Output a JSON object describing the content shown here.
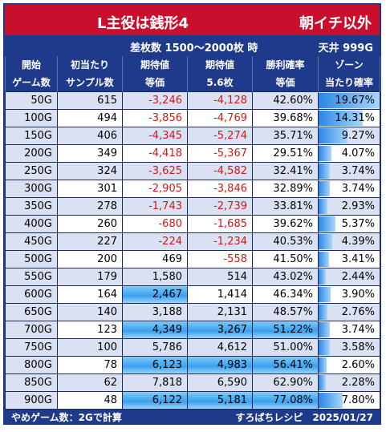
{
  "title": {
    "machine": "L主役は銭形4",
    "scope": "朝イチ以外"
  },
  "subheader": {
    "condition": "差枚数 1500～2000枚 時",
    "ceiling": "天井 999G"
  },
  "headers": [
    [
      "開始",
      "ゲーム数"
    ],
    [
      "初当たり",
      "サンプル数"
    ],
    [
      "期待値",
      "等価"
    ],
    [
      "期待値",
      "5.6枚"
    ],
    [
      "勝利確率",
      "等価"
    ],
    [
      "ゾーン",
      "当たり確率"
    ]
  ],
  "rows": [
    {
      "start": "50G",
      "samples": "615",
      "ev_equal": "-3,246",
      "ev_56": "-4,128",
      "win_rate": "42.60%",
      "zone_rate": "19.67%"
    },
    {
      "start": "100G",
      "samples": "494",
      "ev_equal": "-3,856",
      "ev_56": "-4,769",
      "win_rate": "39.68%",
      "zone_rate": "14.31%"
    },
    {
      "start": "150G",
      "samples": "406",
      "ev_equal": "-4,345",
      "ev_56": "-5,274",
      "win_rate": "35.71%",
      "zone_rate": "9.27%"
    },
    {
      "start": "200G",
      "samples": "349",
      "ev_equal": "-4,418",
      "ev_56": "-5,367",
      "win_rate": "29.51%",
      "zone_rate": "4.07%"
    },
    {
      "start": "250G",
      "samples": "324",
      "ev_equal": "-3,625",
      "ev_56": "-4,582",
      "win_rate": "32.41%",
      "zone_rate": "3.74%"
    },
    {
      "start": "300G",
      "samples": "301",
      "ev_equal": "-2,905",
      "ev_56": "-3,846",
      "win_rate": "32.89%",
      "zone_rate": "3.74%"
    },
    {
      "start": "350G",
      "samples": "278",
      "ev_equal": "-1,743",
      "ev_56": "-2,739",
      "win_rate": "33.81%",
      "zone_rate": "2.93%"
    },
    {
      "start": "400G",
      "samples": "260",
      "ev_equal": "-680",
      "ev_56": "-1,685",
      "win_rate": "39.62%",
      "zone_rate": "5.37%"
    },
    {
      "start": "450G",
      "samples": "227",
      "ev_equal": "-224",
      "ev_56": "-1,234",
      "win_rate": "40.53%",
      "zone_rate": "4.39%"
    },
    {
      "start": "500G",
      "samples": "200",
      "ev_equal": "469",
      "ev_56": "-558",
      "win_rate": "41.50%",
      "zone_rate": "3.41%"
    },
    {
      "start": "550G",
      "samples": "179",
      "ev_equal": "1,580",
      "ev_56": "514",
      "win_rate": "43.02%",
      "zone_rate": "2.44%"
    },
    {
      "start": "600G",
      "samples": "164",
      "ev_equal": "2,467",
      "ev_56": "1,414",
      "win_rate": "46.34%",
      "zone_rate": "3.90%"
    },
    {
      "start": "650G",
      "samples": "140",
      "ev_equal": "3,188",
      "ev_56": "2,131",
      "win_rate": "48.57%",
      "zone_rate": "2.76%"
    },
    {
      "start": "700G",
      "samples": "123",
      "ev_equal": "4,349",
      "ev_56": "3,267",
      "win_rate": "51.22%",
      "zone_rate": "3.74%"
    },
    {
      "start": "750G",
      "samples": "100",
      "ev_equal": "5,786",
      "ev_56": "4,612",
      "win_rate": "51.00%",
      "zone_rate": "3.58%"
    },
    {
      "start": "800G",
      "samples": "78",
      "ev_equal": "6,123",
      "ev_56": "4,983",
      "win_rate": "56.41%",
      "zone_rate": "2.60%"
    },
    {
      "start": "850G",
      "samples": "62",
      "ev_equal": "7,818",
      "ev_56": "6,590",
      "win_rate": "62.90%",
      "zone_rate": "2.28%"
    },
    {
      "start": "900G",
      "samples": "48",
      "ev_equal": "6,122",
      "ev_56": "5,181",
      "win_rate": "77.08%",
      "zone_rate": "7.80%"
    }
  ],
  "footer": {
    "note": "やめゲーム数：2Gで計算",
    "credit": "すろぱちレシピ　2025/01/27"
  },
  "colors": {
    "title_bg": "#c8102e",
    "header_bg": "#1f3a8a",
    "alt_row_bg": "#d9e1f2",
    "negative_text": "#d01818",
    "highlight": "#3aa0ef"
  }
}
